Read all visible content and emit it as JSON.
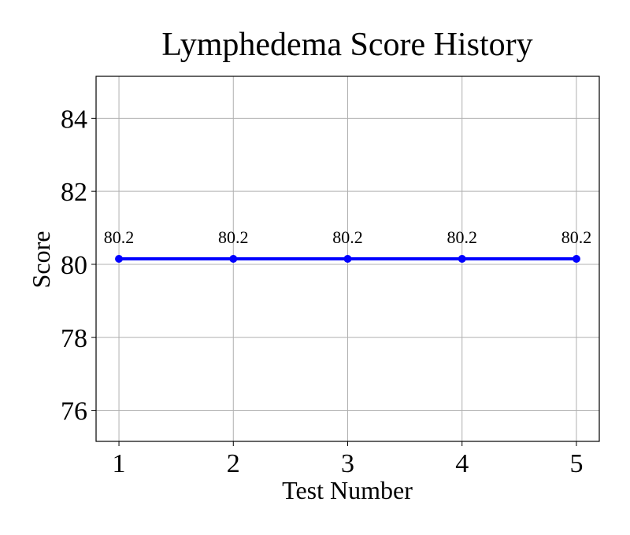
{
  "chart_data": {
    "type": "line",
    "title": "Lymphedema Score History",
    "xlabel": "Test Number",
    "ylabel": "Score",
    "x": [
      1,
      2,
      3,
      4,
      5
    ],
    "series": [
      {
        "values": [
          80.15,
          80.15,
          80.15,
          80.15,
          80.15
        ],
        "labels": [
          "80.2",
          "80.2",
          "80.2",
          "80.2",
          "80.2"
        ],
        "color": "#0000ff"
      }
    ],
    "xlim": [
      0.8,
      5.2
    ],
    "ylim": [
      75.15,
      85.15
    ],
    "xticks": [
      1,
      2,
      3,
      4,
      5
    ],
    "yticks": [
      76,
      78,
      80,
      82,
      84
    ],
    "grid": true,
    "legend": "none"
  }
}
